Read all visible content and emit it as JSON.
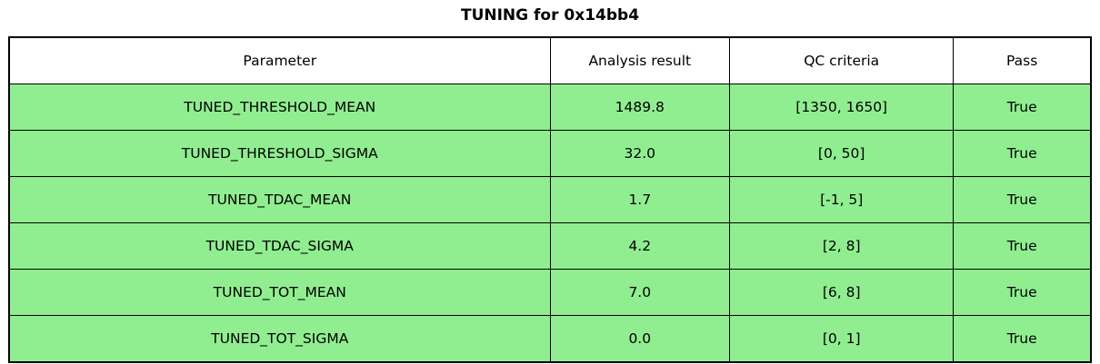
{
  "title": "TUNING for 0x14bb4",
  "colors": {
    "pass_row_bg": "#90ee90",
    "header_bg": "#ffffff",
    "border": "#000000",
    "text": "#000000"
  },
  "table": {
    "headers": [
      "Parameter",
      "Analysis result",
      "QC criteria",
      "Pass"
    ],
    "rows": [
      {
        "parameter": "TUNED_THRESHOLD_MEAN",
        "result": "1489.8",
        "criteria": "[1350, 1650]",
        "pass": "True"
      },
      {
        "parameter": "TUNED_THRESHOLD_SIGMA",
        "result": "32.0",
        "criteria": "[0, 50]",
        "pass": "True"
      },
      {
        "parameter": "TUNED_TDAC_MEAN",
        "result": "1.7",
        "criteria": "[-1, 5]",
        "pass": "True"
      },
      {
        "parameter": "TUNED_TDAC_SIGMA",
        "result": "4.2",
        "criteria": "[2, 8]",
        "pass": "True"
      },
      {
        "parameter": "TUNED_TOT_MEAN",
        "result": "7.0",
        "criteria": "[6, 8]",
        "pass": "True"
      },
      {
        "parameter": "TUNED_TOT_SIGMA",
        "result": "0.0",
        "criteria": "[0, 1]",
        "pass": "True"
      }
    ]
  },
  "chart_data": {
    "type": "table",
    "title": "TUNING for 0x14bb4",
    "columns": [
      "Parameter",
      "Analysis result",
      "QC criteria",
      "Pass"
    ],
    "rows": [
      [
        "TUNED_THRESHOLD_MEAN",
        1489.8,
        "[1350, 1650]",
        true
      ],
      [
        "TUNED_THRESHOLD_SIGMA",
        32.0,
        "[0, 50]",
        true
      ],
      [
        "TUNED_TDAC_MEAN",
        1.7,
        "[-1, 5]",
        true
      ],
      [
        "TUNED_TDAC_SIGMA",
        4.2,
        "[2, 8]",
        true
      ],
      [
        "TUNED_TOT_MEAN",
        7.0,
        "[6, 8]",
        true
      ],
      [
        "TUNED_TOT_SIGMA",
        0.0,
        "[0, 1]",
        true
      ]
    ],
    "legend": "row background green indicates QC pass"
  }
}
